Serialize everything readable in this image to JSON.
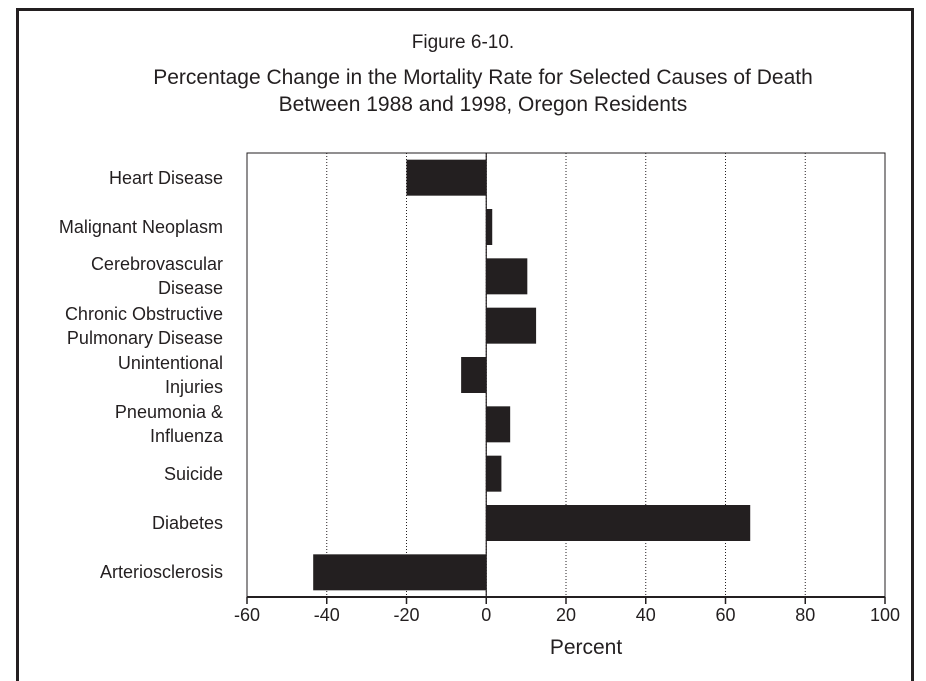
{
  "chart_data": {
    "type": "barh",
    "figure_label": "Figure 6-10.",
    "title": "Percentage Change in the Mortality Rate for Selected Causes of Death\nBetween 1988 and 1998, Oregon Residents",
    "categories": [
      "Heart Disease",
      "Malignant Neoplasm",
      "Cerebrovascular\nDisease",
      "Chronic Obstructive\nPulmonary Disease",
      "Unintentional\nInjuries",
      "Pneumonia &\nInfluenza",
      "Suicide",
      "Diabetes",
      "Arteriosclerosis"
    ],
    "values": [
      -20,
      1.5,
      10.3,
      12.5,
      -6.3,
      6,
      3.8,
      66.2,
      -43.4
    ],
    "color": "#231f20",
    "xlabel": "Percent",
    "xlim": [
      -60,
      100
    ],
    "xticks": [
      -60,
      -40,
      -20,
      0,
      20,
      40,
      60,
      80,
      100
    ],
    "grid": true
  }
}
